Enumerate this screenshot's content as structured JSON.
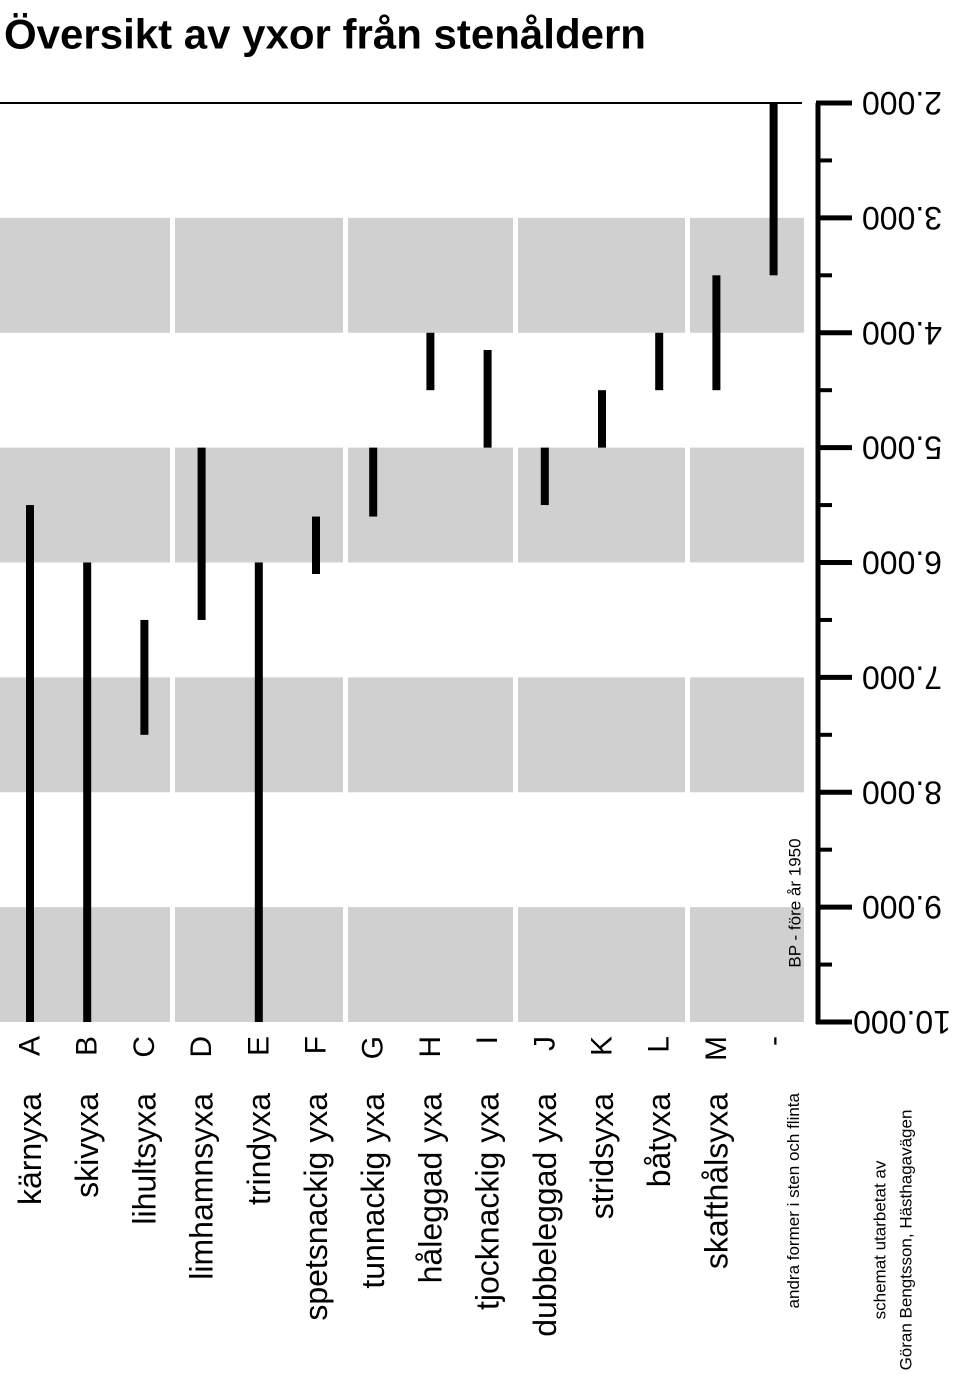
{
  "chart_data": {
    "type": "range",
    "title": "Översikt av yxor från stenåldern",
    "categories": [
      "A",
      "B",
      "C",
      "D",
      "E",
      "F",
      "G",
      "H",
      "I",
      "J",
      "K",
      "L",
      "M",
      "-"
    ],
    "labels": [
      "kärnyxa",
      "skivyxa",
      "lihultsyxa",
      "limhamnsyxa",
      "trindyxa",
      "spetsnackig yxa",
      "tunnackig yxa",
      "håleggad yxa",
      "tjocknackig yxa",
      "dubbeleggad yxa",
      "stridsyxa",
      "båtyxa",
      "skafthålsyxa",
      "andra former i sten och flinta"
    ],
    "from": [
      10000,
      10000,
      7500,
      6500,
      10000,
      6100,
      5600,
      4500,
      5000,
      5500,
      5000,
      4500,
      4500,
      3500
    ],
    "to": [
      5500,
      6000,
      6500,
      5000,
      6000,
      5600,
      5000,
      4000,
      4150,
      5000,
      4500,
      4000,
      3500,
      2000
    ],
    "color": "#000000",
    "ylim": [
      2000,
      10000
    ],
    "yticks": [
      {
        "value": 2000,
        "label": "2.000"
      },
      {
        "value": 3000,
        "label": "3.000"
      },
      {
        "value": 4000,
        "label": "4.000"
      },
      {
        "value": 5000,
        "label": "5.000"
      },
      {
        "value": 6000,
        "label": "6.000"
      },
      {
        "value": 7000,
        "label": "7.000"
      },
      {
        "value": 8000,
        "label": "8.000"
      },
      {
        "value": 9000,
        "label": "9.000"
      },
      {
        "value": 10000,
        "label": "10.000"
      }
    ],
    "minor_yticks": [
      2500,
      3500,
      4500,
      5500,
      6500,
      7500,
      8500,
      9500
    ],
    "axis_label": "BP - före år 1950",
    "credit": [
      "schemat utarbetat av",
      "Göran Bengtsson, Hästhagavägen"
    ]
  }
}
